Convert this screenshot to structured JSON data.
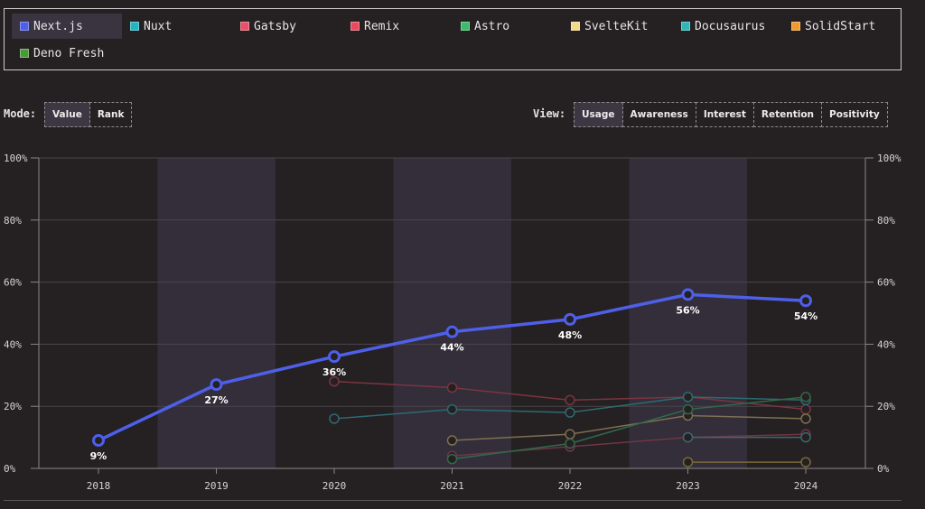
{
  "legend": {
    "items": [
      {
        "label": "Next.js",
        "color": "#4e5fe8",
        "active": true
      },
      {
        "label": "Nuxt",
        "color": "#27b4c2",
        "active": false
      },
      {
        "label": "Gatsby",
        "color": "#e9506a",
        "active": false
      },
      {
        "label": "Remix",
        "color": "#e84a5f",
        "active": false
      },
      {
        "label": "Astro",
        "color": "#3dbb6b",
        "active": false
      },
      {
        "label": "SvelteKit",
        "color": "#f3d98a",
        "active": false
      },
      {
        "label": "Docusaurus",
        "color": "#2fb7b5",
        "active": false
      },
      {
        "label": "SolidStart",
        "color": "#f09a2e",
        "active": false
      },
      {
        "label": "Deno Fresh",
        "color": "#4a9a3a",
        "active": false
      }
    ]
  },
  "mode": {
    "label": "Mode:",
    "options": [
      {
        "label": "Value",
        "active": true
      },
      {
        "label": "Rank",
        "active": false
      }
    ]
  },
  "view": {
    "label": "View:",
    "options": [
      {
        "label": "Usage",
        "active": true
      },
      {
        "label": "Awareness",
        "active": false
      },
      {
        "label": "Interest",
        "active": false
      },
      {
        "label": "Retention",
        "active": false
      },
      {
        "label": "Positivity",
        "active": false
      }
    ]
  },
  "chart_data": {
    "type": "line",
    "x": [
      "2018",
      "2019",
      "2020",
      "2021",
      "2022",
      "2023",
      "2024"
    ],
    "ylim": [
      0,
      100
    ],
    "yticks": [
      0,
      20,
      40,
      60,
      80,
      100
    ],
    "ytick_labels": [
      "0%",
      "20%",
      "40%",
      "60%",
      "80%",
      "100%"
    ],
    "highlight_color": "#4e5fe8",
    "series": [
      {
        "name": "Next.js",
        "color": "#4e5fe8",
        "highlight": true,
        "values": [
          9,
          27,
          36,
          44,
          48,
          56,
          54
        ],
        "labels": [
          "9%",
          "27%",
          "36%",
          "44%",
          "48%",
          "56%",
          "54%"
        ]
      },
      {
        "name": "Gatsby",
        "color": "#7a3540",
        "values": [
          null,
          null,
          28,
          26,
          22,
          23,
          19
        ]
      },
      {
        "name": "Nuxt",
        "color": "#2e6a72",
        "values": [
          null,
          null,
          16,
          19,
          18,
          23,
          22
        ]
      },
      {
        "name": "SvelteKit",
        "color": "#7d7050",
        "values": [
          null,
          null,
          null,
          9,
          11,
          17,
          16
        ]
      },
      {
        "name": "Remix",
        "color": "#6f3646",
        "values": [
          null,
          null,
          null,
          4,
          7,
          10,
          11
        ]
      },
      {
        "name": "Astro",
        "color": "#2f6a4a",
        "values": [
          null,
          null,
          null,
          3,
          8,
          19,
          23
        ]
      },
      {
        "name": "Docusaurus",
        "color": "#3c6a6c",
        "values": [
          null,
          null,
          null,
          null,
          null,
          10,
          10
        ]
      },
      {
        "name": "SolidStart",
        "color": "#7a6a3a",
        "values": [
          null,
          null,
          null,
          null,
          null,
          2,
          2
        ]
      }
    ]
  }
}
